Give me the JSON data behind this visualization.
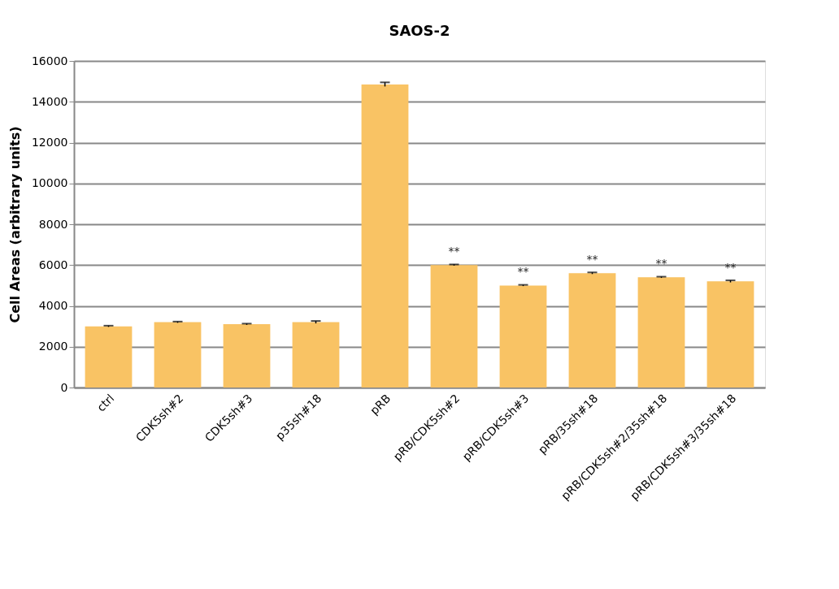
{
  "chart_data": {
    "type": "bar",
    "title": "SAOS-2",
    "ylabel": "Cell Areas (arbitrary units)",
    "categories": [
      "ctrl",
      "CDK5sh#2",
      "CDK5sh#3",
      "p35sh#18",
      "pRB",
      "pRB/CDK5sh#2",
      "pRB/CDK5sh#3",
      "pRB/35sh#18",
      "pRB/CDK5sh#2/35sh#18",
      "pRB/CDK5sh#3/35sh#18"
    ],
    "values": [
      3000,
      3200,
      3100,
      3200,
      14850,
      6000,
      5000,
      5600,
      5400,
      5200
    ],
    "errors": [
      30,
      30,
      30,
      60,
      100,
      30,
      30,
      40,
      30,
      50
    ],
    "color": "#f9c364",
    "ylim": [
      0,
      16000
    ],
    "yticks": [
      0,
      2000,
      4000,
      6000,
      8000,
      10000,
      12000,
      14000,
      16000
    ],
    "grid": "y",
    "annotations": [
      {
        "text": "**",
        "x": "pRB/CDK5sh#2",
        "y": 6000
      },
      {
        "text": "**",
        "x": "pRB/CDK5sh#3",
        "y": 5000
      },
      {
        "text": "**",
        "x": "pRB/35sh#18",
        "y": 5600
      },
      {
        "text": "**",
        "x": "pRB/CDK5sh#2/35sh#18",
        "y": 5400
      },
      {
        "text": "**",
        "x": "pRB/CDK5sh#3/35sh#18",
        "y": 5200
      }
    ]
  }
}
